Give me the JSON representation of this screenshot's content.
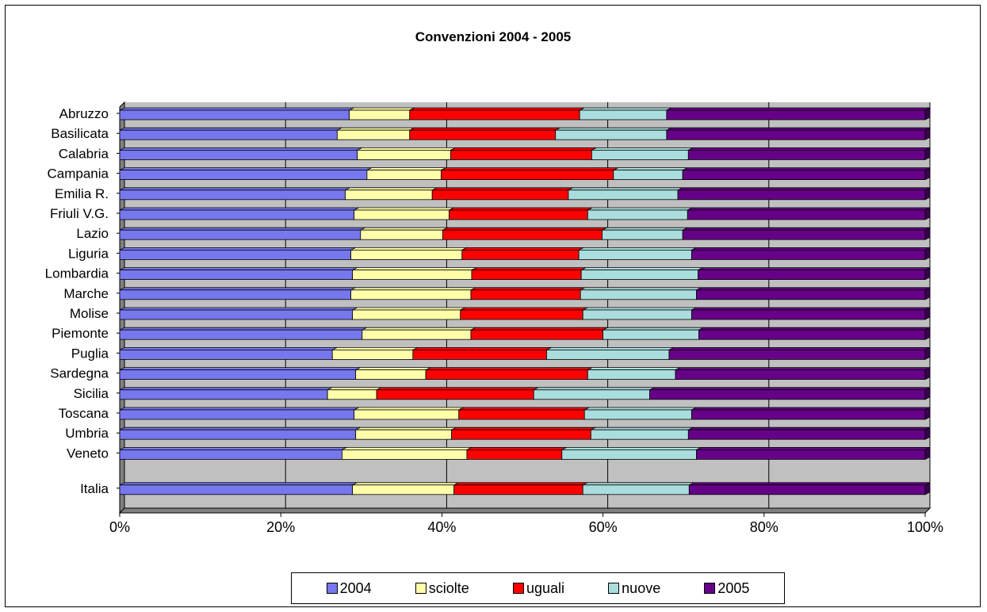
{
  "chart_data": {
    "type": "bar",
    "orientation": "horizontal",
    "stacked": "percent",
    "title": "Convenzioni 2004 - 2005",
    "xlabel": "",
    "ylabel": "",
    "xlim": [
      0,
      100
    ],
    "x_ticks": [
      "0%",
      "20%",
      "40%",
      "60%",
      "80%",
      "100%"
    ],
    "grid": true,
    "legend_position": "bottom",
    "categories": [
      "Abruzzo",
      "Basilicata",
      "Calabria",
      "Campania",
      "Emilia R.",
      "Friuli V.G.",
      "Lazio",
      "Liguria",
      "Lombardia",
      "Marche",
      "Molise",
      "Piemonte",
      "Puglia",
      "Sardegna",
      "Sicilia",
      "Toscana",
      "Umbria",
      "Veneto",
      "Italia"
    ],
    "series": [
      {
        "name": "2004",
        "color": "#7777EE",
        "values": [
          28.5,
          27.0,
          29.5,
          30.7,
          28.0,
          29.1,
          29.9,
          28.7,
          28.9,
          28.7,
          28.9,
          30.1,
          26.4,
          29.3,
          25.8,
          29.1,
          29.3,
          27.6,
          28.9
        ]
      },
      {
        "name": "sciolte",
        "color": "#FFFFAA",
        "values": [
          7.5,
          9.0,
          11.6,
          9.2,
          10.8,
          11.8,
          10.2,
          13.8,
          14.8,
          14.9,
          13.4,
          13.5,
          10.0,
          8.7,
          6.1,
          13.0,
          11.9,
          15.5,
          12.6
        ]
      },
      {
        "name": "uguali",
        "color": "#FF0000",
        "values": [
          21.1,
          18.1,
          17.5,
          21.4,
          16.9,
          17.2,
          19.8,
          14.5,
          13.6,
          13.6,
          15.2,
          16.4,
          16.6,
          20.1,
          19.5,
          15.6,
          17.3,
          11.8,
          16.0
        ]
      },
      {
        "name": "nuove",
        "color": "#AADDDD",
        "values": [
          10.8,
          13.8,
          12.0,
          8.6,
          13.6,
          12.4,
          10.0,
          14.0,
          14.5,
          14.4,
          13.5,
          11.9,
          15.2,
          10.9,
          14.4,
          13.3,
          12.1,
          16.7,
          13.2
        ]
      },
      {
        "name": "2005",
        "color": "#660088",
        "values": [
          32.1,
          32.1,
          29.4,
          30.1,
          30.7,
          29.5,
          30.1,
          29.0,
          28.2,
          28.4,
          29.0,
          28.1,
          31.8,
          31.0,
          34.2,
          29.0,
          29.4,
          28.4,
          29.3
        ]
      }
    ]
  }
}
